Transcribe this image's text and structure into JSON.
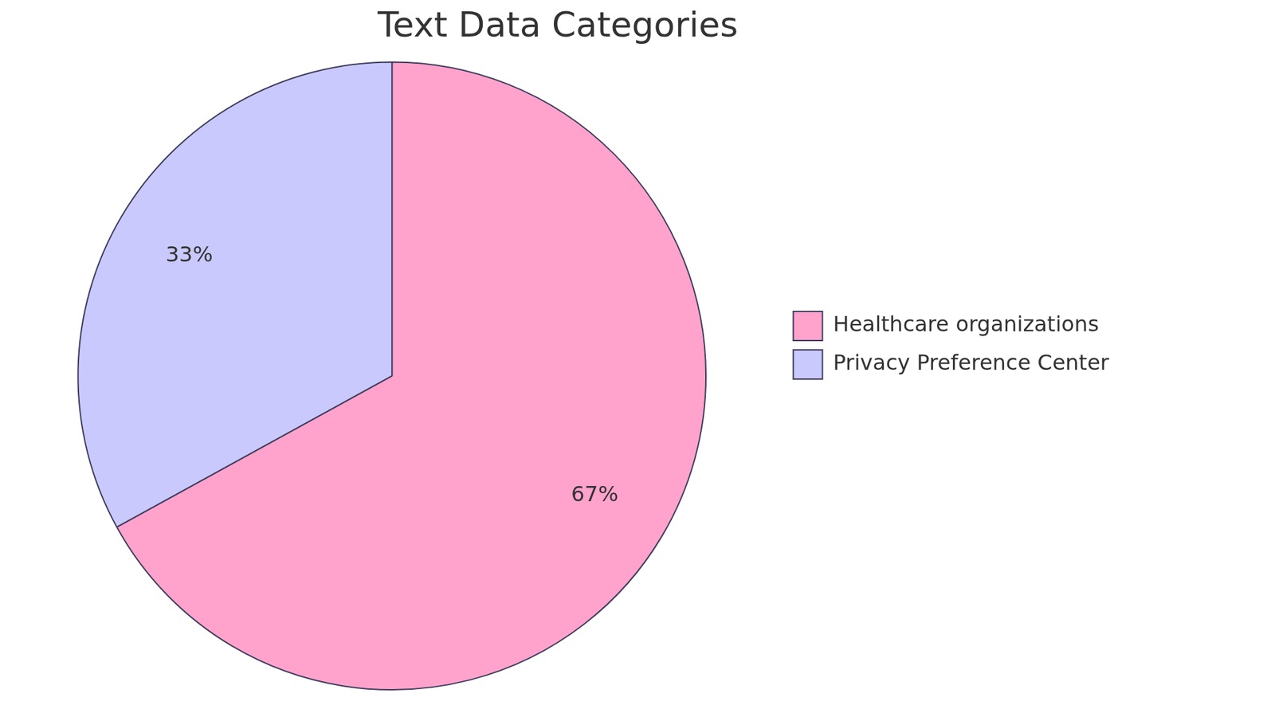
{
  "chart_data": {
    "type": "pie",
    "title": "Text Data Categories",
    "categories": [
      "Healthcare organizations",
      "Privacy Preference Center"
    ],
    "values": [
      67,
      33
    ],
    "value_labels": [
      "67%",
      "33%"
    ],
    "colors": [
      "#ffa3cd",
      "#c9c9fd"
    ],
    "data_labels": true,
    "legend": "right"
  }
}
